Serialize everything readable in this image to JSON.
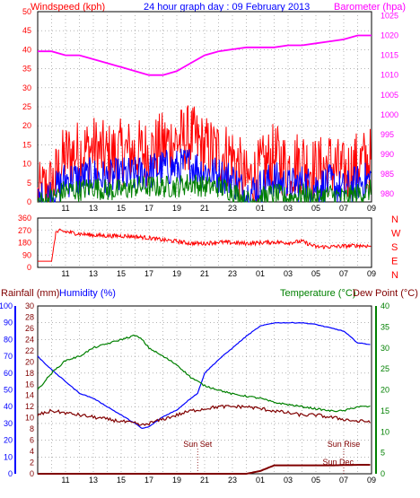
{
  "header": {
    "left": "Windspeed (kph)",
    "center": "24 hour graph day : 09 February 2013",
    "right": "Barometer (hpa)"
  },
  "colors": {
    "red": "#ff0000",
    "blue": "#0000ff",
    "green": "#008000",
    "magenta": "#ff00ff",
    "darkred": "#800000",
    "grid": "#888888"
  },
  "time_ticks": [
    "11",
    "13",
    "15",
    "17",
    "19",
    "21",
    "23",
    "01",
    "03",
    "05",
    "07",
    "09"
  ],
  "chart_data": [
    {
      "type": "line",
      "panel": "wind_barometer",
      "title": "24 hour graph day : 09 February 2013",
      "x_unit": "hour",
      "x_range": [
        9,
        33
      ],
      "y_left": {
        "label": "Windspeed (kph)",
        "ticks": [
          0,
          5,
          10,
          15,
          20,
          25,
          30,
          35,
          40,
          45,
          50
        ],
        "range": [
          0,
          50
        ]
      },
      "y_right": {
        "label": "Barometer (hpa)",
        "ticks": [
          980,
          985,
          990,
          995,
          1000,
          1005,
          1010,
          1015,
          1020,
          1025
        ],
        "range": [
          978,
          1026
        ]
      },
      "series": [
        {
          "name": "Windspeed (kph)",
          "role": "gust",
          "color": "#ff0000",
          "axis": "left",
          "x": [
            9,
            9.5,
            10,
            10.5,
            11,
            12,
            13,
            14,
            15,
            16,
            17,
            18,
            19,
            20,
            21,
            22,
            23,
            24,
            25,
            26,
            27,
            28,
            29,
            30,
            31,
            32,
            33
          ],
          "y": [
            1,
            3,
            4,
            8,
            12,
            13,
            14,
            12,
            13,
            13,
            13,
            15,
            16,
            17,
            14,
            13,
            12,
            5,
            8,
            12,
            9,
            11,
            8,
            10,
            7,
            10,
            11
          ]
        },
        {
          "name": "",
          "role": "average",
          "color": "#0000ff",
          "axis": "left",
          "x": [
            9,
            9.5,
            10,
            10.5,
            11,
            12,
            13,
            14,
            15,
            16,
            17,
            18,
            19,
            20,
            21,
            22,
            23,
            24,
            25,
            26,
            27,
            28,
            29,
            30,
            31,
            32,
            33
          ],
          "y": [
            0,
            1,
            2,
            4,
            6,
            6,
            7,
            6,
            7,
            7,
            8,
            9,
            9,
            10,
            8,
            7,
            6,
            2,
            4,
            6,
            4,
            5,
            4,
            5,
            3,
            5,
            6
          ]
        },
        {
          "name": "",
          "role": "lull",
          "color": "#008000",
          "axis": "left",
          "x": [
            9,
            9.5,
            10,
            10.5,
            11,
            12,
            13,
            14,
            15,
            16,
            17,
            18,
            19,
            20,
            21,
            22,
            23,
            24,
            25,
            26,
            27,
            28,
            29,
            30,
            31,
            32,
            33
          ],
          "y": [
            0,
            0,
            1,
            2,
            3,
            3,
            4,
            3,
            3,
            4,
            4,
            4,
            4,
            5,
            4,
            4,
            3,
            0,
            1,
            2,
            1,
            2,
            1,
            2,
            1,
            2,
            3
          ]
        },
        {
          "name": "Barometer (hpa)",
          "color": "#ff00ff",
          "axis": "right",
          "x": [
            9,
            10,
            11,
            12,
            13,
            14,
            15,
            16,
            17,
            18,
            19,
            20,
            21,
            22,
            23,
            24,
            25,
            26,
            27,
            28,
            29,
            30,
            31,
            32,
            32.5,
            33
          ],
          "y": [
            1016,
            1016,
            1015,
            1015,
            1014,
            1013,
            1012,
            1011,
            1010,
            1010,
            1011,
            1013,
            1015,
            1016,
            1016.5,
            1017,
            1017,
            1017,
            1017.5,
            1017.5,
            1018,
            1018.5,
            1019,
            1020,
            1020,
            1020
          ]
        }
      ]
    },
    {
      "type": "line",
      "panel": "wind_direction",
      "x_unit": "hour",
      "x_range": [
        9,
        33
      ],
      "y_left": {
        "ticks": [
          0,
          45,
          90,
          135,
          180,
          225,
          270,
          315,
          360
        ],
        "range": [
          0,
          360
        ]
      },
      "y_right": {
        "labels": [
          "N",
          "W",
          "S",
          "E",
          "N"
        ]
      },
      "series": [
        {
          "name": "",
          "color": "#ff0000",
          "x": [
            9,
            10,
            10.3,
            10.6,
            11,
            12,
            13,
            14,
            15,
            16,
            17,
            18,
            19,
            20,
            21,
            22,
            23,
            24,
            25,
            26,
            27,
            28,
            29,
            30,
            31,
            32,
            33
          ],
          "y": [
            45,
            45,
            255,
            265,
            260,
            245,
            235,
            230,
            230,
            225,
            215,
            200,
            190,
            175,
            175,
            185,
            180,
            175,
            180,
            185,
            180,
            190,
            150,
            150,
            155,
            160,
            155
          ]
        }
      ]
    },
    {
      "type": "line",
      "panel": "temperature_humidity_rain",
      "x_unit": "hour",
      "x_range": [
        9,
        33
      ],
      "y_rain": {
        "label": "Rainfall (mm)",
        "ticks": [
          0,
          2,
          4,
          6,
          8,
          10,
          12,
          14,
          16,
          18,
          20,
          22,
          24,
          26,
          28,
          30
        ],
        "range": [
          0,
          30
        ]
      },
      "y_humidity": {
        "label": "Humidity (%)",
        "ticks": [
          0,
          10,
          20,
          30,
          40,
          50,
          60,
          70,
          80,
          90,
          100
        ],
        "range": [
          0,
          100
        ]
      },
      "y_temp": {
        "label": "Temperature (°C)",
        "ticks": [
          0,
          5,
          10,
          15,
          20,
          25,
          30,
          35,
          40
        ],
        "range": [
          0,
          40
        ]
      },
      "y_dew_label": "Dew Point (°C)",
      "annotations": [
        {
          "label": "Sun Set",
          "x": 20.5
        },
        {
          "label": "Sun Rise",
          "x": 31
        },
        {
          "label": "Sun Dec",
          "x": 30.6
        }
      ],
      "series": [
        {
          "name": "Humidity (%)",
          "color": "#0000ff",
          "axis": "humidity",
          "x": [
            9,
            10,
            11,
            12,
            13,
            14,
            15,
            16,
            16.5,
            17,
            18,
            19,
            20,
            20.5,
            21,
            22,
            23,
            24,
            25,
            26,
            27,
            28,
            29,
            30,
            31,
            32,
            33
          ],
          "y": [
            70,
            62,
            55,
            48,
            45,
            40,
            35,
            30,
            27,
            28,
            34,
            38,
            45,
            48,
            60,
            68,
            75,
            82,
            88,
            90,
            90,
            90,
            89,
            87,
            85,
            78,
            77
          ]
        },
        {
          "name": "Temperature (°C)",
          "color": "#008000",
          "axis": "temp",
          "x": [
            9,
            10,
            11,
            12,
            13,
            14,
            15,
            16,
            16.5,
            17,
            18,
            19,
            20,
            21,
            22,
            23,
            24,
            25,
            26,
            27,
            28,
            29,
            30,
            31,
            32,
            33
          ],
          "y": [
            20,
            24,
            27,
            28,
            30,
            31,
            32,
            33,
            32,
            30,
            28,
            26,
            23,
            21,
            20,
            19,
            18.5,
            18,
            17,
            16.5,
            16,
            15.5,
            15,
            15,
            16,
            16
          ]
        },
        {
          "name": "Dew Point (°C)",
          "color": "#800000",
          "axis": "temp",
          "x": [
            9,
            10,
            11,
            12,
            13,
            14,
            15,
            16,
            16.5,
            17,
            18,
            19,
            20,
            21,
            22,
            23,
            24,
            25,
            26,
            27,
            28,
            29,
            30,
            31,
            32,
            33
          ],
          "y": [
            14,
            15,
            14.5,
            14,
            13.5,
            13,
            12.5,
            12,
            11.5,
            12,
            13,
            14,
            15,
            15.5,
            16,
            16,
            16,
            15.5,
            15,
            14.5,
            14,
            14,
            13.5,
            13,
            12.5,
            12.5
          ]
        },
        {
          "name": "Rainfall (mm)",
          "color": "#800000",
          "axis": "rain",
          "x": [
            9,
            24,
            25,
            25.5,
            26,
            28,
            30,
            32,
            33
          ],
          "y": [
            0,
            0,
            0.5,
            1,
            1.5,
            1.5,
            1.5,
            1.6,
            1.6
          ]
        }
      ]
    }
  ]
}
